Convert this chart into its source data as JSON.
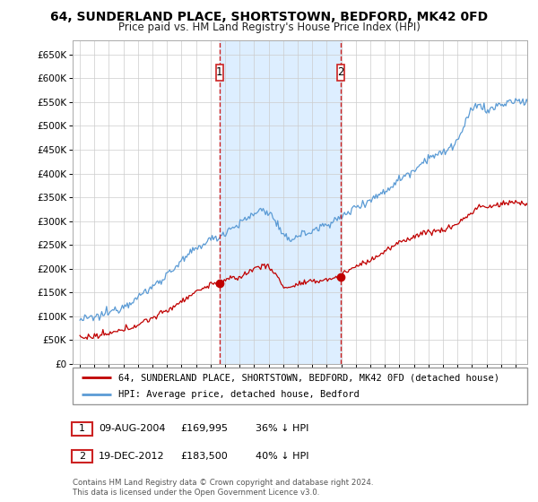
{
  "title": "64, SUNDERLAND PLACE, SHORTSTOWN, BEDFORD, MK42 0FD",
  "subtitle": "Price paid vs. HM Land Registry's House Price Index (HPI)",
  "legend_line1": "64, SUNDERLAND PLACE, SHORTSTOWN, BEDFORD, MK42 0FD (detached house)",
  "legend_line2": "HPI: Average price, detached house, Bedford",
  "sale1_label": "1",
  "sale1_date": "09-AUG-2004",
  "sale1_price": "£169,995",
  "sale1_hpi": "36% ↓ HPI",
  "sale2_label": "2",
  "sale2_date": "19-DEC-2012",
  "sale2_price": "£183,500",
  "sale2_hpi": "40% ↓ HPI",
  "footer": "Contains HM Land Registry data © Crown copyright and database right 2024.\nThis data is licensed under the Open Government Licence v3.0.",
  "hpi_color": "#5b9bd5",
  "price_color": "#c00000",
  "dashed_line_color": "#cc2222",
  "shade_color": "#ddeeff",
  "ylim": [
    0,
    680000
  ],
  "yticks": [
    0,
    50000,
    100000,
    150000,
    200000,
    250000,
    300000,
    350000,
    400000,
    450000,
    500000,
    550000,
    600000,
    650000
  ],
  "sale1_x": 2004.6,
  "sale1_y": 169995,
  "sale2_x": 2012.97,
  "sale2_y": 183500,
  "xlim_left": 1994.5,
  "xlim_right": 2025.8
}
